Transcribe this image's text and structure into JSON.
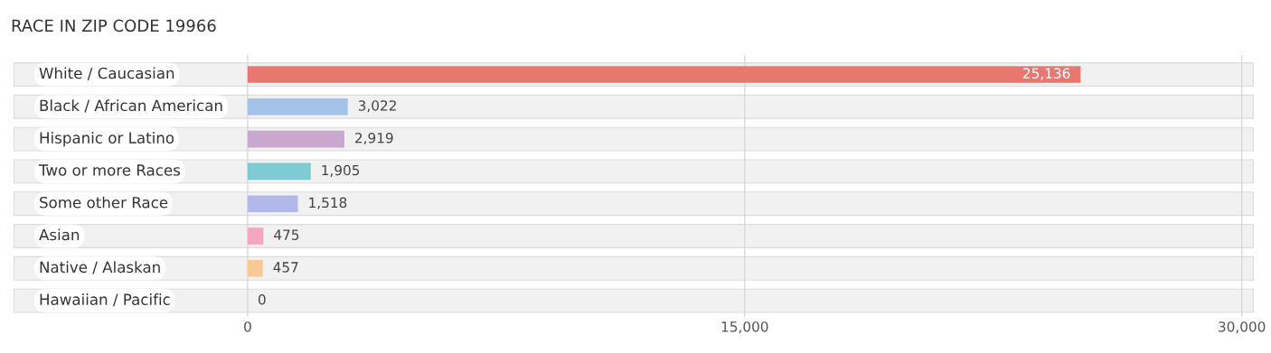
{
  "chart_data": {
    "type": "bar",
    "orientation": "horizontal",
    "title": "RACE IN ZIP CODE 19966",
    "categories": [
      "White / Caucasian",
      "Black / African American",
      "Hispanic or Latino",
      "Two or more Races",
      "Some other Race",
      "Asian",
      "Native / Alaskan",
      "Hawaiian / Pacific"
    ],
    "values": [
      25136,
      3022,
      2919,
      1905,
      1518,
      475,
      457,
      0
    ],
    "value_labels": [
      "25,136",
      "3,022",
      "2,919",
      "1,905",
      "1,518",
      "475",
      "457",
      "0"
    ],
    "colors": [
      "#e8776f",
      "#a4c2e8",
      "#c9a8cf",
      "#7ecbd3",
      "#b3b8ea",
      "#f4a5bf",
      "#f8c897",
      "#f2aaa8"
    ],
    "xlim": [
      -7200,
      30500
    ],
    "xticks": [
      {
        "value": 0,
        "label": "0"
      },
      {
        "value": 15000,
        "label": "15,000"
      },
      {
        "value": 30000,
        "label": "30,000"
      }
    ],
    "grid": "x",
    "legend": false
  }
}
